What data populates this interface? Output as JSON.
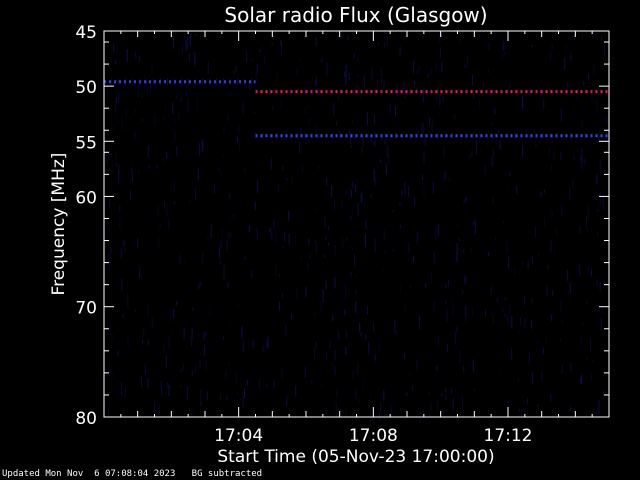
{
  "chart_data": {
    "type": "heatmap",
    "title": "Solar radio Flux (Glasgow)",
    "xlabel": "Start Time (05-Nov-23 17:00:00)",
    "ylabel": "Frequency [MHz]",
    "x_unit": "minutes after 17:00:00",
    "xlim": [
      0,
      15
    ],
    "ylim": [
      45,
      80
    ],
    "y_reversed": true,
    "x_ticks": [
      {
        "value": 4,
        "label": "17:04"
      },
      {
        "value": 8,
        "label": "17:08"
      },
      {
        "value": 12,
        "label": "17:12"
      }
    ],
    "y_ticks": [
      {
        "value": 45,
        "label": "45"
      },
      {
        "value": 50,
        "label": "50"
      },
      {
        "value": 55,
        "label": "55"
      },
      {
        "value": 60,
        "label": "60"
      },
      {
        "value": 70,
        "label": "70"
      },
      {
        "value": 80,
        "label": "80"
      }
    ],
    "bands": [
      {
        "freq": 49.6,
        "x_start": 0.0,
        "x_end": 4.5,
        "color": "#3040ff"
      },
      {
        "freq": 50.5,
        "x_start": 4.5,
        "x_end": 15.0,
        "color": "#ff2040"
      },
      {
        "freq": 54.5,
        "x_start": 4.5,
        "x_end": 15.0,
        "color": "#3050ff"
      }
    ],
    "colors": {
      "background": "#000000",
      "noise": "#101060",
      "axes": "#ffffff"
    }
  },
  "footer": {
    "updated": "Updated Mon Nov  6 07:08:04 2023",
    "note": "BG subtracted"
  }
}
